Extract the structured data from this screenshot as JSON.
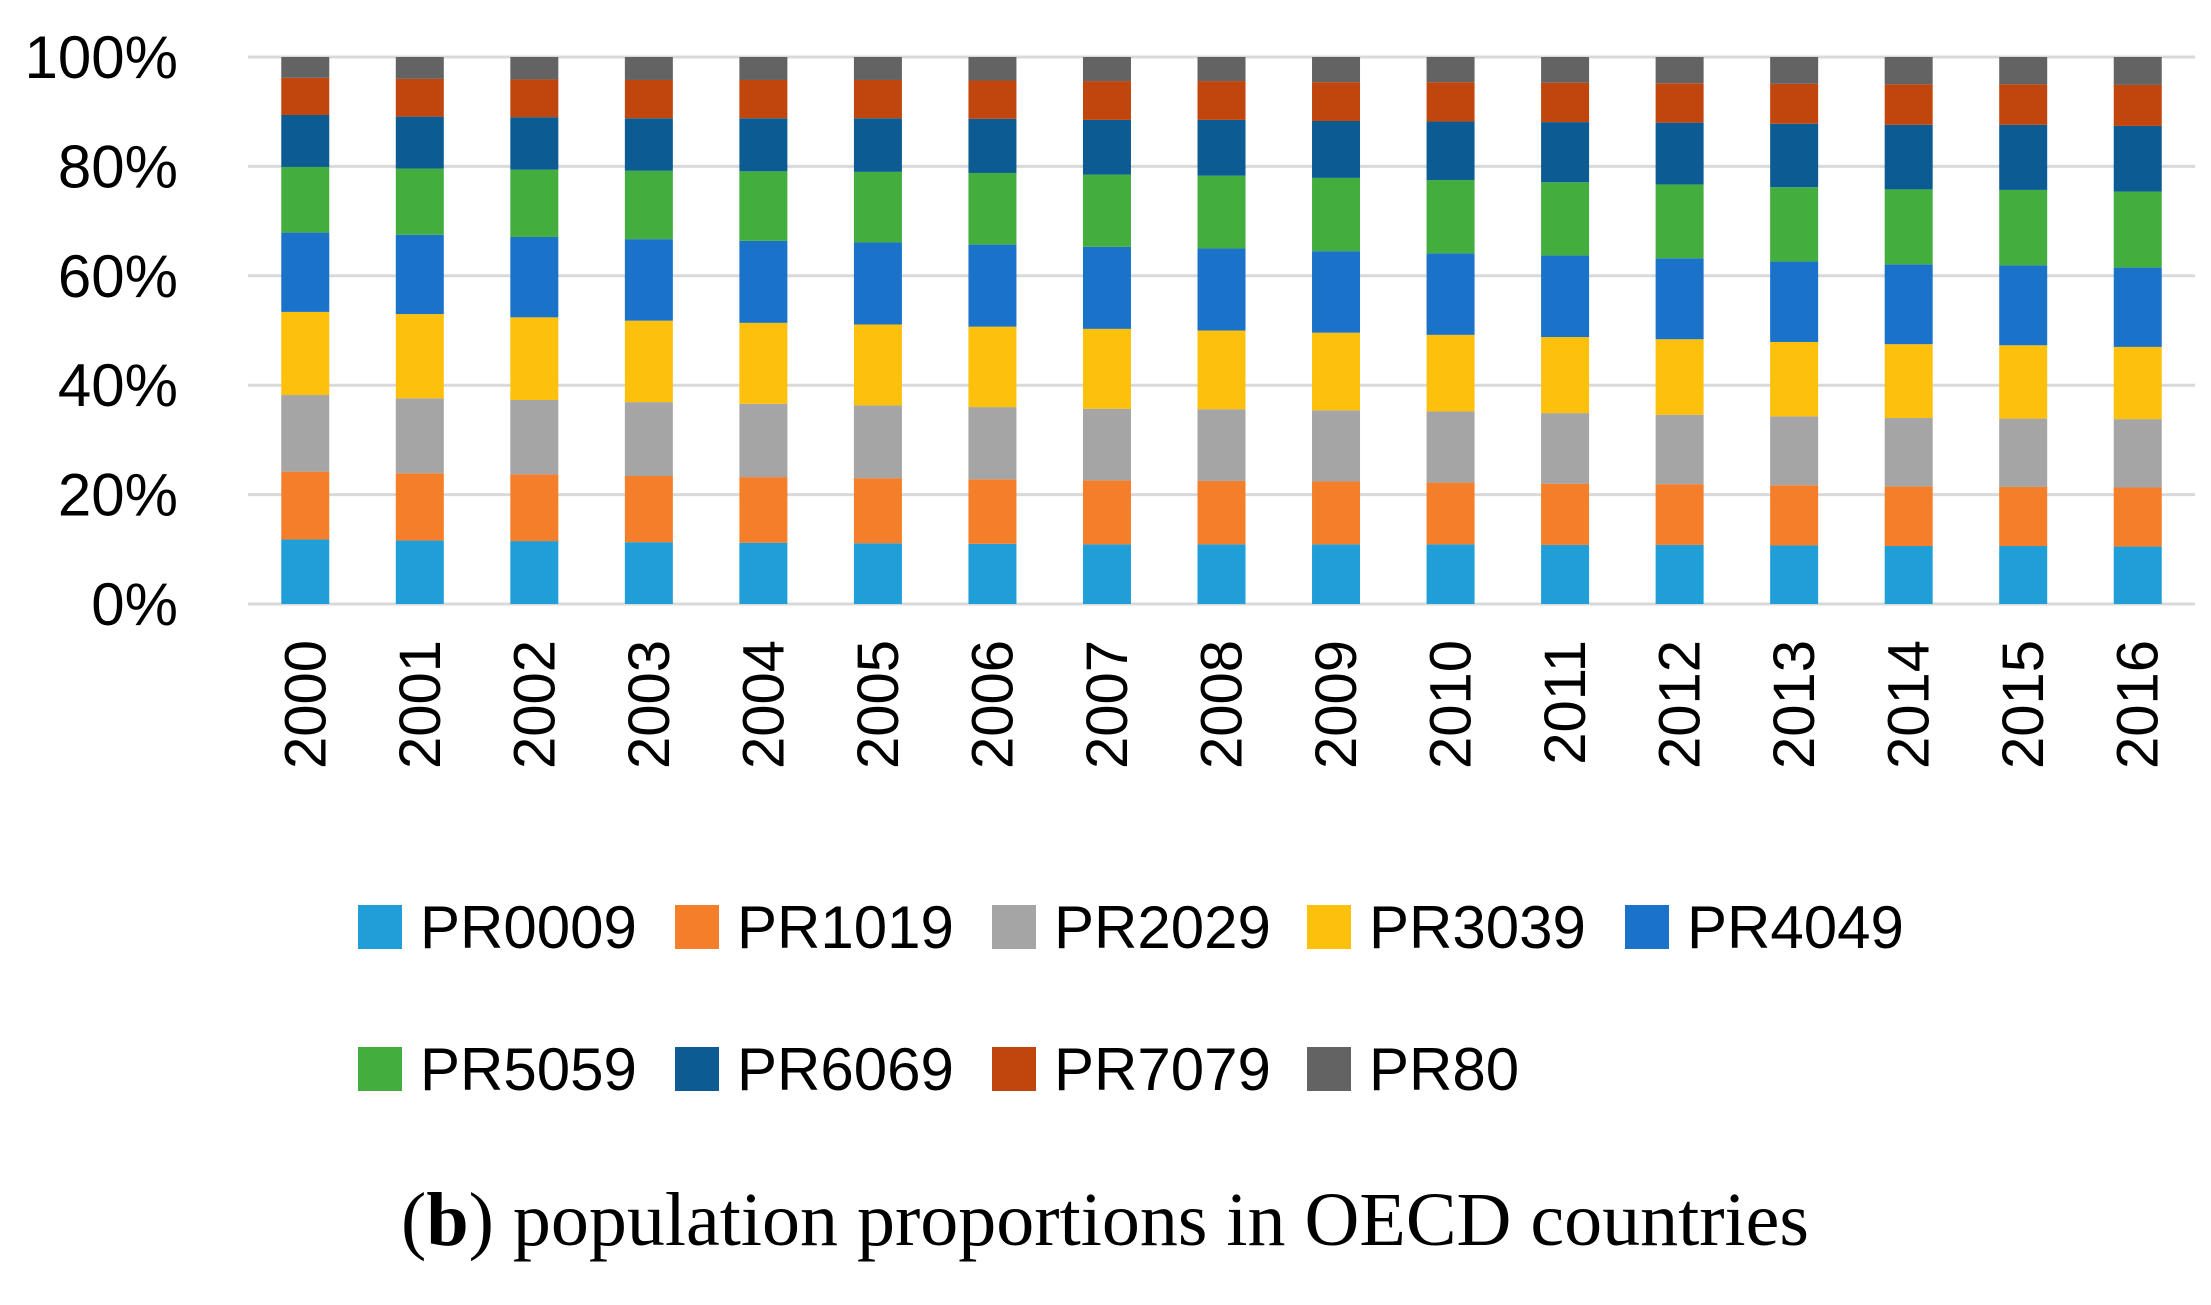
{
  "chart_data": {
    "type": "bar",
    "stacked": true,
    "percent_stacked": true,
    "title": "",
    "xlabel": "",
    "ylabel": "",
    "ylim": [
      0,
      100
    ],
    "yticks": [
      "0%",
      "20%",
      "40%",
      "60%",
      "80%",
      "100%"
    ],
    "categories": [
      "2000",
      "2001",
      "2002",
      "2003",
      "2004",
      "2005",
      "2006",
      "2007",
      "2008",
      "2009",
      "2010",
      "2011",
      "2012",
      "2013",
      "2014",
      "2015",
      "2016"
    ],
    "series": [
      {
        "name": "PR0009",
        "color": "#1f9ed8",
        "values": [
          11.8,
          11.6,
          11.5,
          11.3,
          11.2,
          11.1,
          11.0,
          10.9,
          10.9,
          10.9,
          10.9,
          10.8,
          10.8,
          10.7,
          10.6,
          10.6,
          10.5
        ]
      },
      {
        "name": "PR1019",
        "color": "#f47e2a",
        "values": [
          12.4,
          12.3,
          12.2,
          12.1,
          12.0,
          11.9,
          11.8,
          11.7,
          11.6,
          11.5,
          11.3,
          11.2,
          11.1,
          11.0,
          10.9,
          10.8,
          10.8
        ]
      },
      {
        "name": "PR2029",
        "color": "#a5a5a5",
        "values": [
          14.0,
          13.7,
          13.6,
          13.5,
          13.4,
          13.3,
          13.2,
          13.1,
          13.1,
          13.0,
          13.0,
          12.9,
          12.7,
          12.6,
          12.5,
          12.5,
          12.5
        ]
      },
      {
        "name": "PR3039",
        "color": "#fdc00d",
        "values": [
          15.2,
          15.4,
          15.1,
          14.9,
          14.8,
          14.8,
          14.7,
          14.6,
          14.4,
          14.2,
          14.0,
          13.9,
          13.8,
          13.6,
          13.5,
          13.4,
          13.2
        ]
      },
      {
        "name": "PR4049",
        "color": "#1b72c9",
        "values": [
          14.5,
          14.5,
          14.7,
          14.9,
          15.0,
          15.0,
          15.0,
          15.0,
          15.0,
          14.9,
          14.9,
          14.9,
          14.8,
          14.7,
          14.6,
          14.6,
          14.5
        ]
      },
      {
        "name": "PR5059",
        "color": "#43ad3e",
        "values": [
          12.0,
          12.1,
          12.3,
          12.5,
          12.7,
          12.9,
          13.1,
          13.2,
          13.3,
          13.4,
          13.4,
          13.4,
          13.5,
          13.6,
          13.7,
          13.8,
          13.9
        ]
      },
      {
        "name": "PR6069",
        "color": "#0c5c93",
        "values": [
          9.5,
          9.5,
          9.6,
          9.6,
          9.7,
          9.8,
          9.9,
          10.0,
          10.2,
          10.4,
          10.7,
          11.0,
          11.3,
          11.6,
          11.8,
          11.9,
          12.0
        ]
      },
      {
        "name": "PR7079",
        "color": "#c1460d",
        "values": [
          6.8,
          6.9,
          6.9,
          7.0,
          7.0,
          7.0,
          7.0,
          7.1,
          7.1,
          7.1,
          7.2,
          7.2,
          7.2,
          7.3,
          7.4,
          7.4,
          7.5
        ]
      },
      {
        "name": "PR80",
        "color": "#636363",
        "values": [
          3.8,
          4.0,
          4.1,
          4.2,
          4.2,
          4.2,
          4.3,
          4.4,
          4.4,
          4.6,
          4.6,
          4.7,
          4.8,
          4.9,
          5.0,
          5.0,
          5.1
        ]
      }
    ],
    "grid": true,
    "legend_position": "bottom",
    "caption_prefix": "(",
    "caption_bold": "b",
    "caption_rest": ") population proportions in OECD countries"
  }
}
